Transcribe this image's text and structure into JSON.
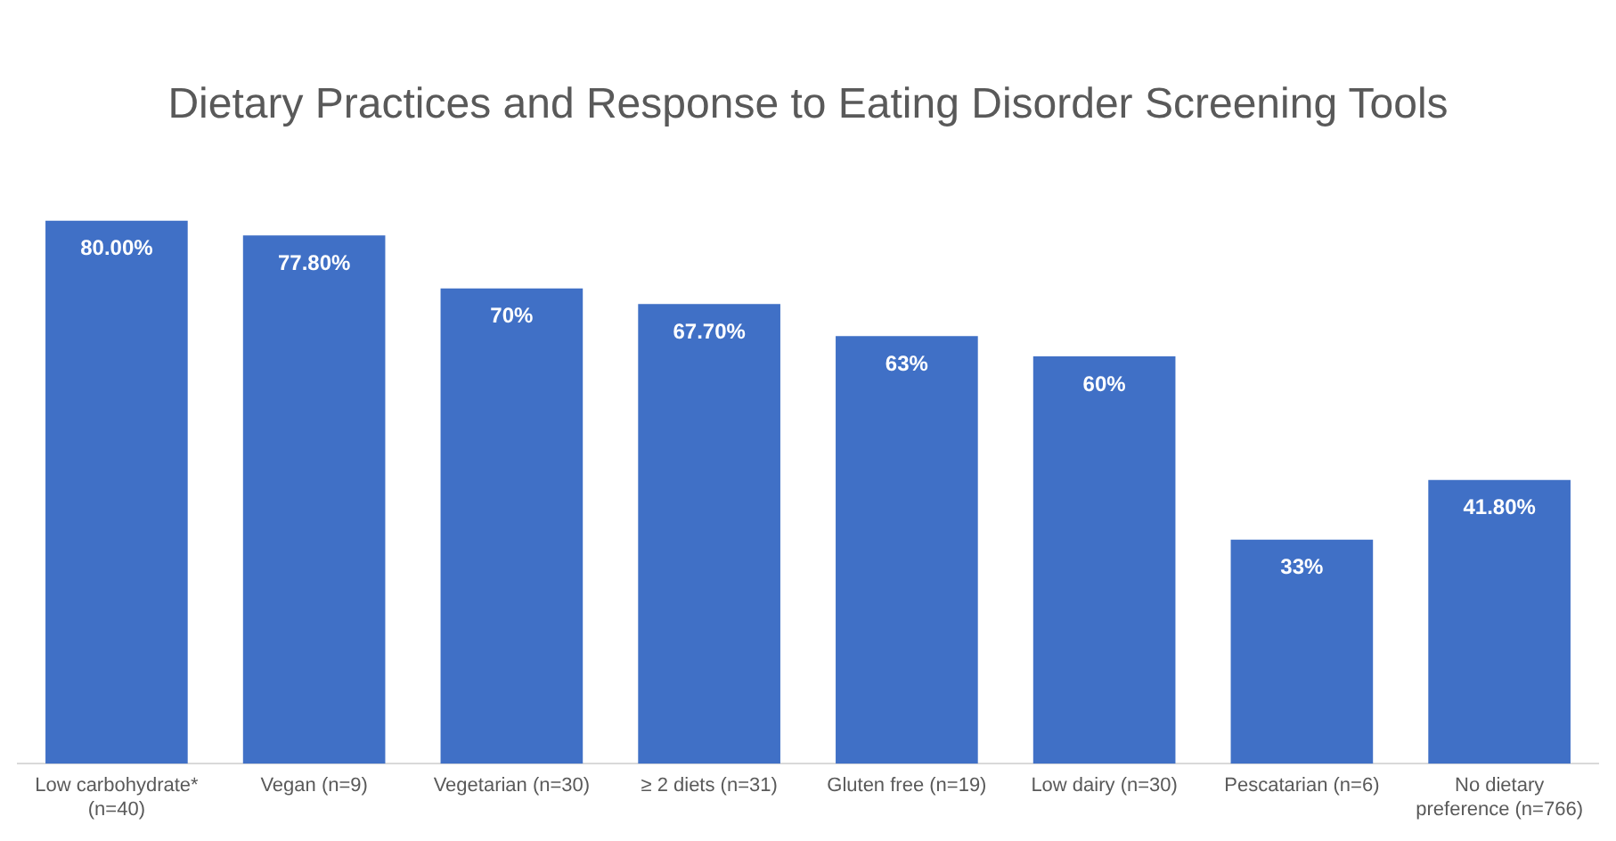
{
  "chart_data": {
    "type": "bar",
    "title": "Dietary Practices and Response to Eating Disorder Screening Tools",
    "categories": [
      "Low carbohydrate* (n=40)",
      "Vegan (n=9)",
      "Vegetarian (n=30)",
      "≥ 2 diets (n=31)",
      "Gluten free (n=19)",
      "Low dairy (n=30)",
      "Pescatarian (n=6)",
      "No dietary preference (n=766)"
    ],
    "values": [
      80,
      77.8,
      70,
      67.7,
      63,
      60,
      33,
      41.8
    ],
    "value_labels": [
      "80.00%",
      "77.80%",
      "70%",
      "67.70%",
      "63%",
      "60%",
      "33%",
      "41.80%"
    ],
    "color": "#4070c6",
    "grid": false,
    "legend": false
  }
}
